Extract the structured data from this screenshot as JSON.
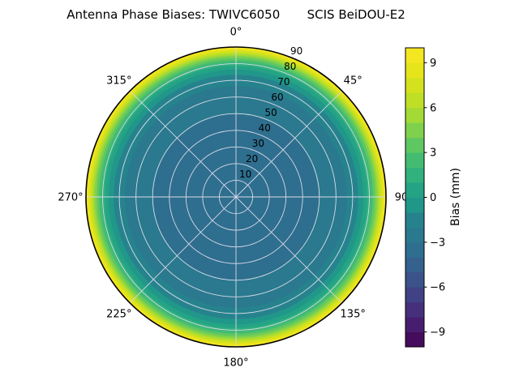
{
  "title": "Antenna Phase Biases: TWIVC6050       SCIS BeiDOU-E2",
  "chart_data": {
    "type": "polar_contour_filled",
    "title": "Antenna Phase Biases: TWIVC6050       SCIS BeiDOU-E2",
    "colormap": "viridis",
    "vmin": -10,
    "vmax": 10,
    "radial_max": 90,
    "radial_ticks": [
      10,
      20,
      30,
      40,
      50,
      60,
      70,
      80,
      90
    ],
    "radial_label_azimuth_deg": 22.5,
    "angular_ticks": [
      {
        "deg": 0,
        "label": "0°"
      },
      {
        "deg": 45,
        "label": "45°"
      },
      {
        "deg": 90,
        "label": "90"
      },
      {
        "deg": 135,
        "label": "135°"
      },
      {
        "deg": 180,
        "label": "180°"
      },
      {
        "deg": 225,
        "label": "225°"
      },
      {
        "deg": 270,
        "label": "270°"
      },
      {
        "deg": 315,
        "label": "315°"
      }
    ],
    "grid_color": "#d9d9e8",
    "outline_color": "#000000",
    "bands": [
      {
        "value_range": [
          -4,
          -3
        ],
        "r_outer": 0.55,
        "color": "#2e6e8e"
      },
      {
        "value_range": [
          -3,
          -2
        ],
        "r_outer": 0.74,
        "color": "#2a798e"
      },
      {
        "value_range": [
          -2,
          -1
        ],
        "r_outer": 0.815,
        "color": "#26838d"
      },
      {
        "value_range": [
          -1,
          0
        ],
        "r_outer": 0.85,
        "color": "#21978a"
      },
      {
        "value_range": [
          0,
          1
        ],
        "r_outer": 0.875,
        "color": "#24a485"
      },
      {
        "value_range": [
          1,
          2
        ],
        "r_outer": 0.895,
        "color": "#30b17d"
      },
      {
        "value_range": [
          2,
          3
        ],
        "r_outer": 0.912,
        "color": "#43bc71"
      },
      {
        "value_range": [
          3,
          4
        ],
        "r_outer": 0.928,
        "color": "#5fc761"
      },
      {
        "value_range": [
          4,
          5
        ],
        "r_outer": 0.942,
        "color": "#7fd14d"
      },
      {
        "value_range": [
          5,
          6
        ],
        "r_outer": 0.954,
        "color": "#a3da36"
      },
      {
        "value_range": [
          6,
          7
        ],
        "r_outer": 0.965,
        "color": "#bfdf26"
      },
      {
        "value_range": [
          7,
          8
        ],
        "r_outer": 0.976,
        "color": "#d4e21d"
      },
      {
        "value_range": [
          8,
          9
        ],
        "r_outer": 0.988,
        "color": "#e6e41b"
      },
      {
        "value_range": [
          9,
          10
        ],
        "r_outer": 1.0,
        "color": "#f5e622"
      }
    ],
    "colorbar": {
      "label": "Bias (mm)",
      "ticks": [
        {
          "value": -9,
          "label": "−9"
        },
        {
          "value": -6,
          "label": "−6"
        },
        {
          "value": -3,
          "label": "−3"
        },
        {
          "value": 0,
          "label": "0"
        },
        {
          "value": 3,
          "label": "3"
        },
        {
          "value": 6,
          "label": "6"
        },
        {
          "value": 9,
          "label": "9"
        }
      ],
      "segments": [
        {
          "value_range": [
            -10,
            -9
          ],
          "color": "#450b5d"
        },
        {
          "value_range": [
            -9,
            -8
          ],
          "color": "#471e6f"
        },
        {
          "value_range": [
            -8,
            -7
          ],
          "color": "#46307c"
        },
        {
          "value_range": [
            -7,
            -6
          ],
          "color": "#404285"
        },
        {
          "value_range": [
            -6,
            -5
          ],
          "color": "#3b528a"
        },
        {
          "value_range": [
            -5,
            -4
          ],
          "color": "#34618d"
        },
        {
          "value_range": [
            -4,
            -3
          ],
          "color": "#2e6e8e"
        },
        {
          "value_range": [
            -3,
            -2
          ],
          "color": "#2a798e"
        },
        {
          "value_range": [
            -2,
            -1
          ],
          "color": "#26838d"
        },
        {
          "value_range": [
            -1,
            0
          ],
          "color": "#21978a"
        },
        {
          "value_range": [
            0,
            1
          ],
          "color": "#24a485"
        },
        {
          "value_range": [
            1,
            2
          ],
          "color": "#30b17d"
        },
        {
          "value_range": [
            2,
            3
          ],
          "color": "#43bc71"
        },
        {
          "value_range": [
            3,
            4
          ],
          "color": "#5fc761"
        },
        {
          "value_range": [
            4,
            5
          ],
          "color": "#7fd14d"
        },
        {
          "value_range": [
            5,
            6
          ],
          "color": "#a3da36"
        },
        {
          "value_range": [
            6,
            7
          ],
          "color": "#bfdf26"
        },
        {
          "value_range": [
            7,
            8
          ],
          "color": "#d4e21d"
        },
        {
          "value_range": [
            8,
            9
          ],
          "color": "#e6e41b"
        },
        {
          "value_range": [
            9,
            10
          ],
          "color": "#f5e622"
        }
      ]
    }
  }
}
